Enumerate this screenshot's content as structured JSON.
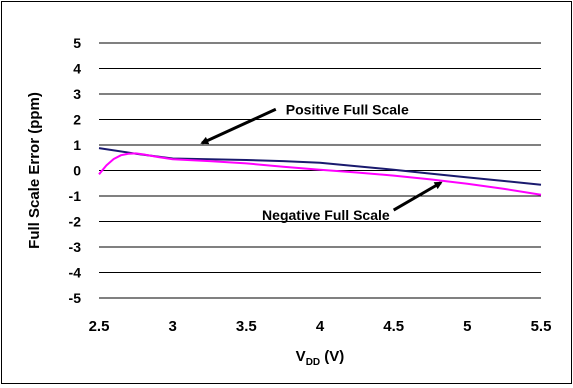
{
  "chart_data": {
    "type": "line",
    "title": "",
    "xlabel": {
      "main": "V",
      "sub": "DD",
      "rest": " (V)"
    },
    "ylabel": "Full Scale Error (ppm)",
    "xlim": [
      2.5,
      5.5
    ],
    "ylim": [
      -5,
      5
    ],
    "x_ticks": [
      2.5,
      3,
      3.5,
      4,
      4.5,
      5,
      5.5
    ],
    "x_tick_labels": [
      "2.5",
      "3",
      "3.5",
      "4",
      "4.5",
      "5",
      "5.5"
    ],
    "y_ticks": [
      5,
      4,
      3,
      2,
      1,
      0,
      -1,
      -2,
      -3,
      -4,
      -5
    ],
    "y_tick_labels": [
      "5",
      "4",
      "3",
      "2",
      "1",
      "0",
      "-1",
      "-2",
      "-3",
      "-4",
      "-5"
    ],
    "grid": true,
    "series": [
      {
        "color": "#1a1a6e",
        "x": [
          2.5,
          2.75,
          3.0,
          3.25,
          3.5,
          3.75,
          4.0,
          4.25,
          4.5,
          4.75,
          5.0,
          5.25,
          5.5
        ],
        "y": [
          0.88,
          0.66,
          0.47,
          0.44,
          0.41,
          0.37,
          0.3,
          0.17,
          0.03,
          -0.12,
          -0.27,
          -0.41,
          -0.56
        ]
      },
      {
        "color": "#ff00ff",
        "x": [
          2.5,
          2.55,
          2.6,
          2.65,
          2.7,
          2.75,
          2.8,
          2.9,
          3.0,
          3.25,
          3.5,
          3.75,
          4.0,
          4.25,
          4.5,
          4.75,
          5.0,
          5.25,
          5.5
        ],
        "y": [
          -0.15,
          0.2,
          0.45,
          0.6,
          0.66,
          0.67,
          0.63,
          0.53,
          0.44,
          0.37,
          0.28,
          0.15,
          0.03,
          -0.08,
          -0.2,
          -0.35,
          -0.52,
          -0.72,
          -0.95
        ]
      }
    ],
    "annotations": [
      {
        "text": "Positive Full Scale",
        "from": [
          3.7,
          2.4
        ],
        "to": [
          3.2,
          1.08
        ]
      },
      {
        "text": "Negative Full Scale",
        "from": [
          4.5,
          -1.55
        ],
        "to": [
          4.82,
          -0.48
        ]
      }
    ]
  }
}
